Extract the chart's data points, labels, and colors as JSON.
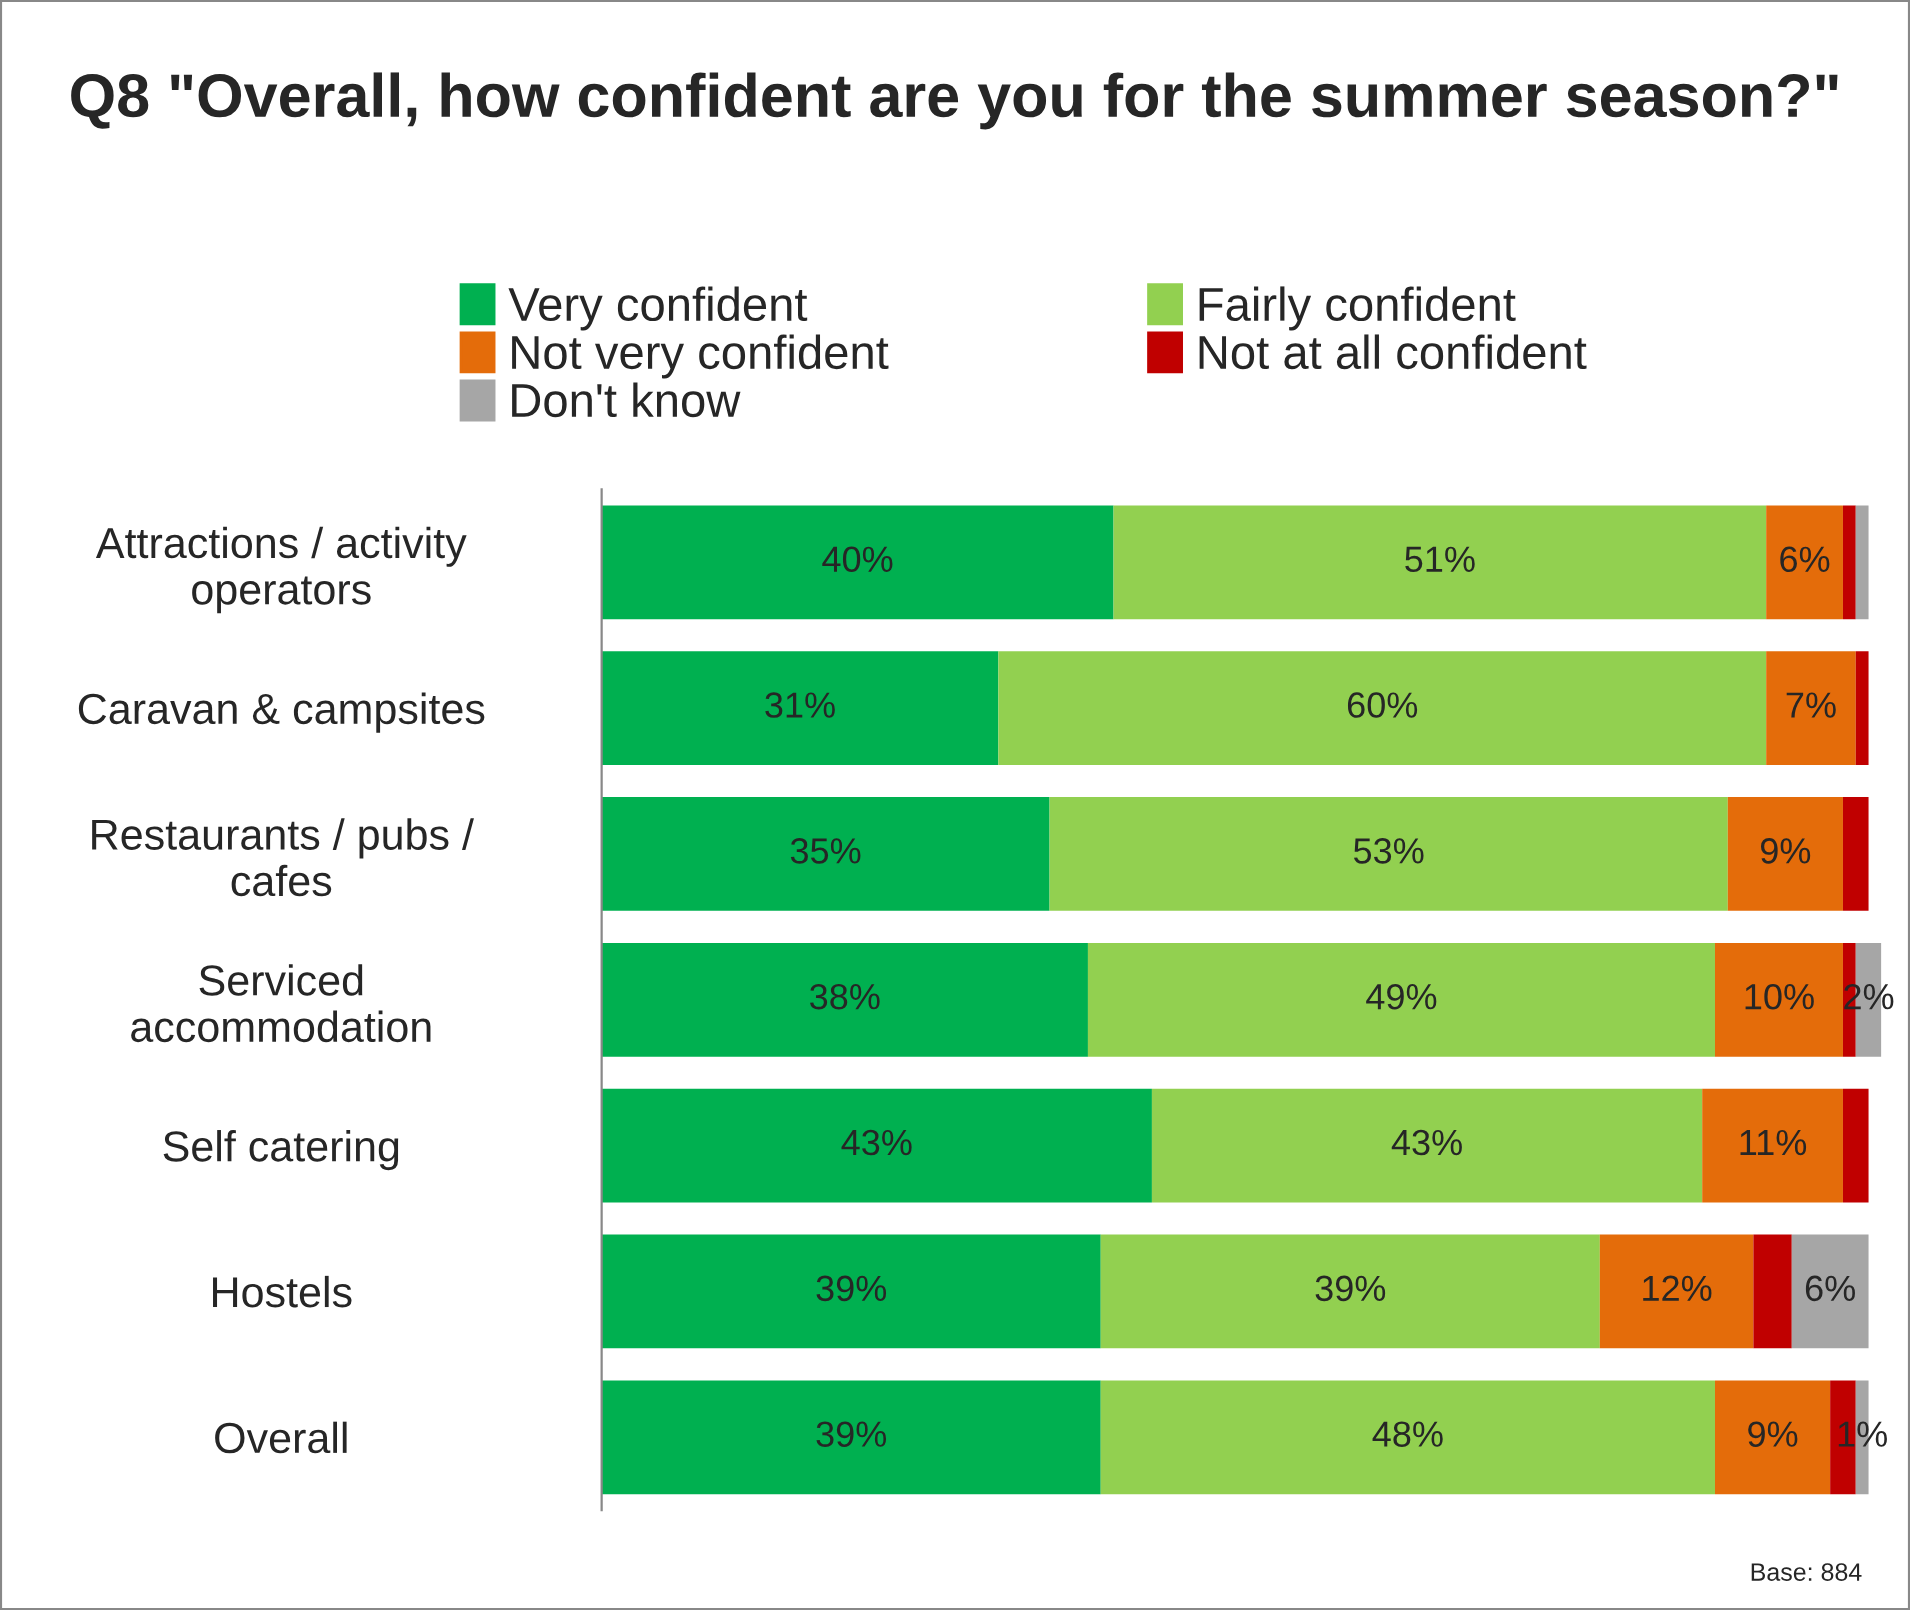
{
  "chart_data": {
    "type": "bar",
    "orientation": "horizontal",
    "stacked": true,
    "title": "Q8 \"Overall, how confident are you for the summer season?\"",
    "categories": [
      "Attractions / activity\noperators",
      "Caravan & campsites",
      "Restaurants / pubs /\ncafes",
      "Serviced\naccommodation",
      "Self catering",
      "Hostels",
      "Overall"
    ],
    "series": [
      {
        "name": "Very confident",
        "color": "#00b050",
        "values": [
          40,
          31,
          35,
          38,
          43,
          39,
          39
        ],
        "value_labels": [
          "40%",
          "31%",
          "35%",
          "38%",
          "43%",
          "39%",
          "39%"
        ]
      },
      {
        "name": "Fairly confident",
        "color": "#92d050",
        "values": [
          51,
          60,
          53,
          49,
          43,
          39,
          48
        ],
        "value_labels": [
          "51%",
          "60%",
          "53%",
          "49%",
          "43%",
          "39%",
          "48%"
        ]
      },
      {
        "name": "Not very confident",
        "color": "#e46c0a",
        "values": [
          6,
          7,
          9,
          10,
          11,
          12,
          9
        ],
        "value_labels": [
          "6%",
          "7%",
          "9%",
          "10%",
          "11%",
          "12%",
          "9%"
        ]
      },
      {
        "name": "Not at all confident",
        "color": "#c00000",
        "values": [
          1,
          1,
          2,
          1,
          2,
          3,
          2
        ],
        "value_labels": [
          null,
          null,
          null,
          null,
          null,
          null,
          null
        ]
      },
      {
        "name": "Don't know",
        "color": "#a6a6a6",
        "values": [
          1,
          0,
          0,
          2,
          0,
          6,
          1
        ],
        "value_labels": [
          null,
          null,
          null,
          "2%",
          null,
          "6%",
          "1%"
        ]
      }
    ],
    "xlim": [
      0,
      100
    ],
    "tick_labels": "y",
    "legend": "top",
    "grid": false,
    "annotations": [
      "Base: 884"
    ]
  }
}
